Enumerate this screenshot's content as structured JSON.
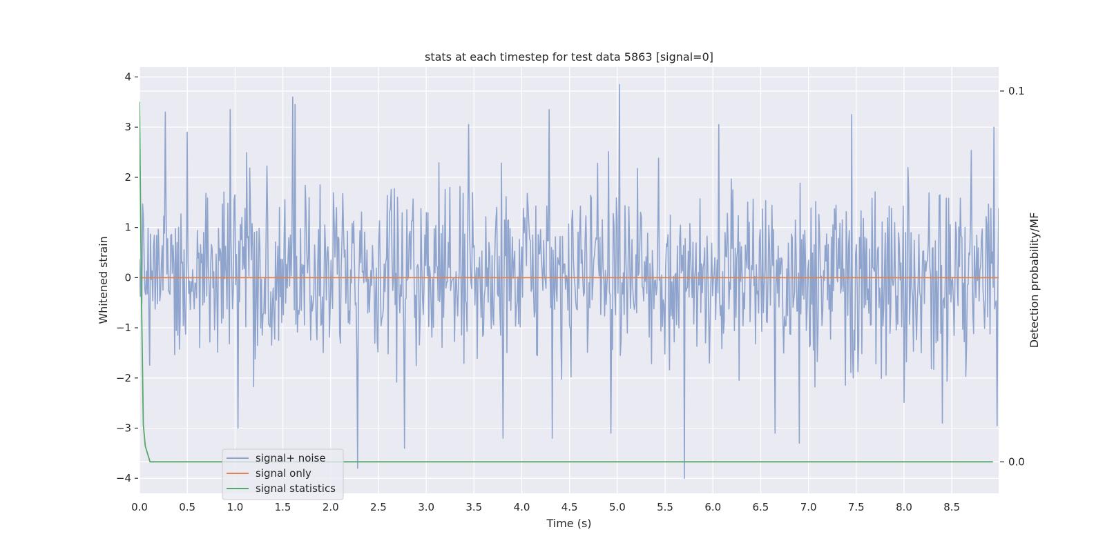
{
  "chart_data": {
    "type": "line",
    "title": "stats at each timestep for test data 5863 [signal=0]",
    "xlabel": "Time (s)",
    "ylabel": "Whitened strain",
    "y2label": "Detection probability/MF",
    "xlim": [
      0.0,
      8.99
    ],
    "ylim": [
      -4.3,
      4.2
    ],
    "y2lim": [
      -0.0085,
      0.1065
    ],
    "xticks": [
      0.0,
      0.5,
      1.0,
      1.5,
      2.0,
      2.5,
      3.0,
      3.5,
      4.0,
      4.5,
      5.0,
      5.5,
      6.0,
      6.5,
      7.0,
      7.5,
      8.0,
      8.5
    ],
    "xtick_labels": [
      "0.0",
      "0.5",
      "1.0",
      "1.5",
      "2.0",
      "2.5",
      "3.0",
      "3.5",
      "4.0",
      "4.5",
      "5.0",
      "5.5",
      "6.0",
      "6.5",
      "7.0",
      "7.5",
      "8.0",
      "8.5"
    ],
    "yticks": [
      -4,
      -3,
      -2,
      -1,
      0,
      1,
      2,
      3,
      4
    ],
    "ytick_labels": [
      "−4",
      "−3",
      "−2",
      "−1",
      "0",
      "1",
      "2",
      "3",
      "4"
    ],
    "y2ticks": [
      0.0,
      0.1
    ],
    "y2tick_labels": [
      "0.0",
      "0.1"
    ],
    "grid": true,
    "legend_position": "lower-left",
    "series": [
      {
        "name": "signal+ noise",
        "axis": "left",
        "color": "#8fa4cc",
        "kind": "noise",
        "sample_count": 1100,
        "std": 0.85,
        "peaks": [
          [
            0.27,
            3.3
          ],
          [
            0.5,
            2.9
          ],
          [
            0.95,
            3.35
          ],
          [
            1.03,
            -3.0
          ],
          [
            1.6,
            3.6
          ],
          [
            1.63,
            3.45
          ],
          [
            2.28,
            -3.8
          ],
          [
            2.77,
            -3.4
          ],
          [
            3.44,
            3.05
          ],
          [
            3.8,
            -3.2
          ],
          [
            4.29,
            3.35
          ],
          [
            4.32,
            -3.2
          ],
          [
            4.93,
            -3.1
          ],
          [
            5.02,
            3.85
          ],
          [
            5.7,
            -4.0
          ],
          [
            6.06,
            3.05
          ],
          [
            6.65,
            -3.1
          ],
          [
            6.9,
            -3.3
          ],
          [
            7.45,
            3.25
          ],
          [
            8.4,
            -2.9
          ],
          [
            8.94,
            3.0
          ],
          [
            8.97,
            -2.95
          ]
        ]
      },
      {
        "name": "signal only",
        "axis": "left",
        "color": "#dd8452",
        "x": [
          0.0,
          8.99
        ],
        "y": [
          0.0,
          0.0
        ]
      },
      {
        "name": "signal statistics",
        "axis": "right",
        "color": "#55a868",
        "x": [
          0.0,
          0.02,
          0.04,
          0.06,
          0.11,
          0.5,
          1.0,
          2.0,
          3.0,
          4.0,
          5.0,
          6.0,
          7.0,
          8.0,
          8.93
        ],
        "y": [
          0.0971,
          0.045,
          0.01,
          0.0043,
          0.0,
          0.0,
          0.0,
          0.0,
          0.0,
          0.0,
          0.0,
          0.0,
          0.0,
          0.0,
          0.0
        ]
      }
    ]
  }
}
